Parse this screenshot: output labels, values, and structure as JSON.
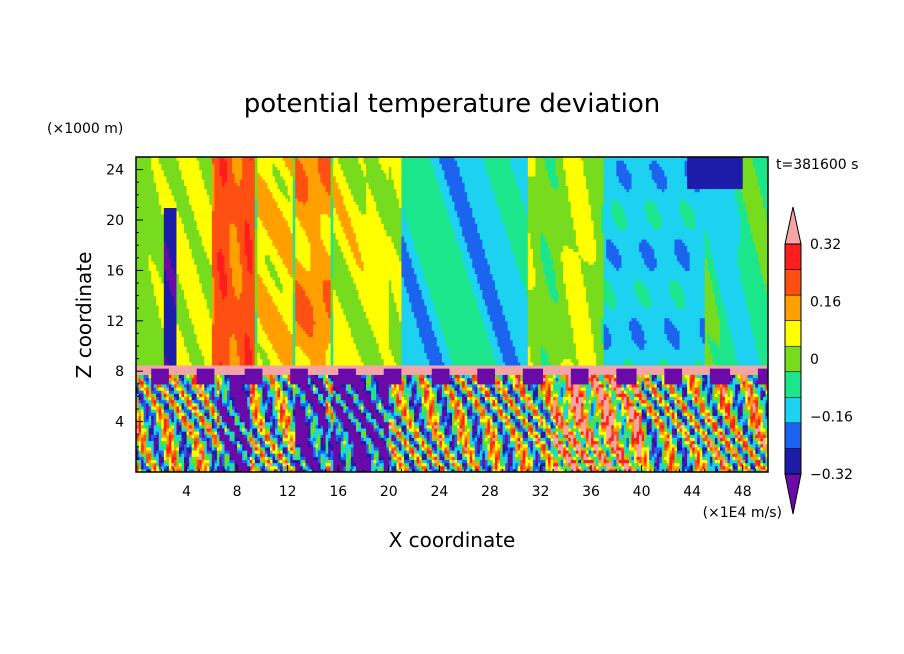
{
  "chart_data": {
    "type": "heatmap",
    "title": "potential temperature deviation",
    "xlabel": "X coordinate",
    "ylabel": "Z coordinate",
    "x_unit": "(×1E4 m/s)",
    "y_unit": "(×1000 m)",
    "time_label": "t=381600 s",
    "xlim": [
      0,
      50
    ],
    "ylim": [
      0,
      25
    ],
    "x_ticks": [
      4,
      8,
      12,
      16,
      20,
      24,
      28,
      32,
      36,
      40,
      44,
      48
    ],
    "y_ticks": [
      4,
      8,
      12,
      16,
      20,
      24
    ],
    "colorbar": {
      "levels": [
        -0.4,
        -0.32,
        -0.24,
        -0.16,
        -0.08,
        0,
        0.08,
        0.16,
        0.24,
        0.32,
        0.4
      ],
      "tick_labels": [
        "0.32",
        "0.16",
        "0",
        "−0.16",
        "−0.32"
      ],
      "tick_values": [
        0.32,
        0.16,
        0,
        -0.16,
        -0.32
      ],
      "colors": [
        "#6a0aa8",
        "#1c1ca8",
        "#1c64f0",
        "#1cd2f0",
        "#1ce68c",
        "#78dc1e",
        "#ffff00",
        "#ffa000",
        "#ff5014",
        "#ff1e1e",
        "#f5a5a5"
      ],
      "extend": "both"
    },
    "grid": false
  }
}
